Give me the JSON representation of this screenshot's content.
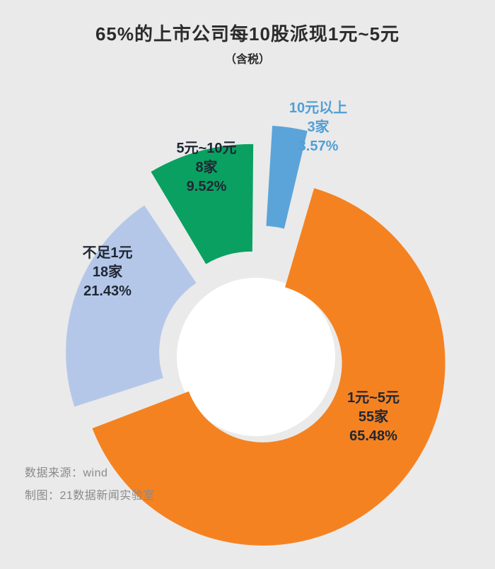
{
  "page": {
    "background_color": "#eaeaea"
  },
  "chart_data": {
    "type": "pie",
    "variant": "exploded-donut",
    "title": "65%的上市公司每10股派现1元~5元",
    "subtitle": "（含税）",
    "legend_position": "labels-on-slices",
    "slices": [
      {
        "key": "over-10",
        "label": "10元以上",
        "count": "3家",
        "percent_label": "3.57%",
        "value": 3.57,
        "color": "#5BA4D9",
        "text_color": "#4F9FD6"
      },
      {
        "key": "1-to-5",
        "label": "1元~5元",
        "count": "55家",
        "percent_label": "65.48%",
        "value": 65.48,
        "color": "#F58220",
        "text_color": "#1F2733"
      },
      {
        "key": "under-1",
        "label": "不足1元",
        "count": "18家",
        "percent_label": "21.43%",
        "value": 21.43,
        "color": "#B5C7E9",
        "text_color": "#1F2733"
      },
      {
        "key": "5-to-10",
        "label": "5元~10元",
        "count": "8家",
        "percent_label": "9.52%",
        "value": 9.52,
        "color": "#0AA061",
        "text_color": "#1F2733"
      }
    ],
    "hole_color": "#FFFFFF",
    "source": "数据来源：wind",
    "credit": "制图：21数据新闻实验室"
  }
}
